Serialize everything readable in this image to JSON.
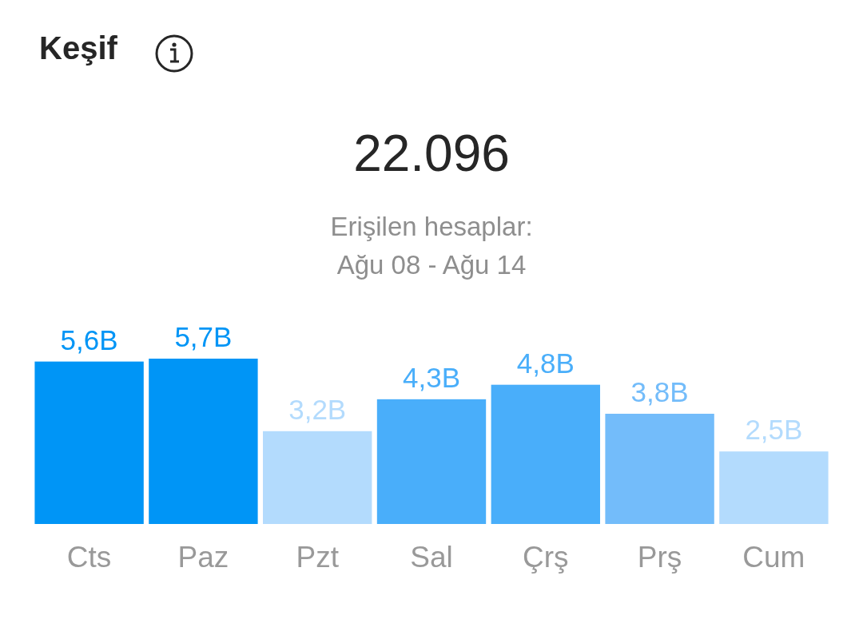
{
  "chart_data": {
    "type": "bar",
    "title": "Keşif",
    "annotations": [
      "22.096",
      "Erişilen hesaplar:",
      "Ağu 08 - Ağu 14"
    ],
    "categories": [
      "Cts",
      "Paz",
      "Pzt",
      "Sal",
      "Çrş",
      "Prş",
      "Cum"
    ],
    "values": [
      5.6,
      5.7,
      3.2,
      4.3,
      4.8,
      3.8,
      2.5
    ],
    "value_labels": [
      "5,6B",
      "5,7B",
      "3,2B",
      "4,3B",
      "4,8B",
      "3,8B",
      "2,5B"
    ],
    "colors": [
      "#0095f6",
      "#0095f6",
      "#b3dbfd",
      "#49aefa",
      "#49aefa",
      "#73bcfa",
      "#b3dbfd"
    ]
  }
}
